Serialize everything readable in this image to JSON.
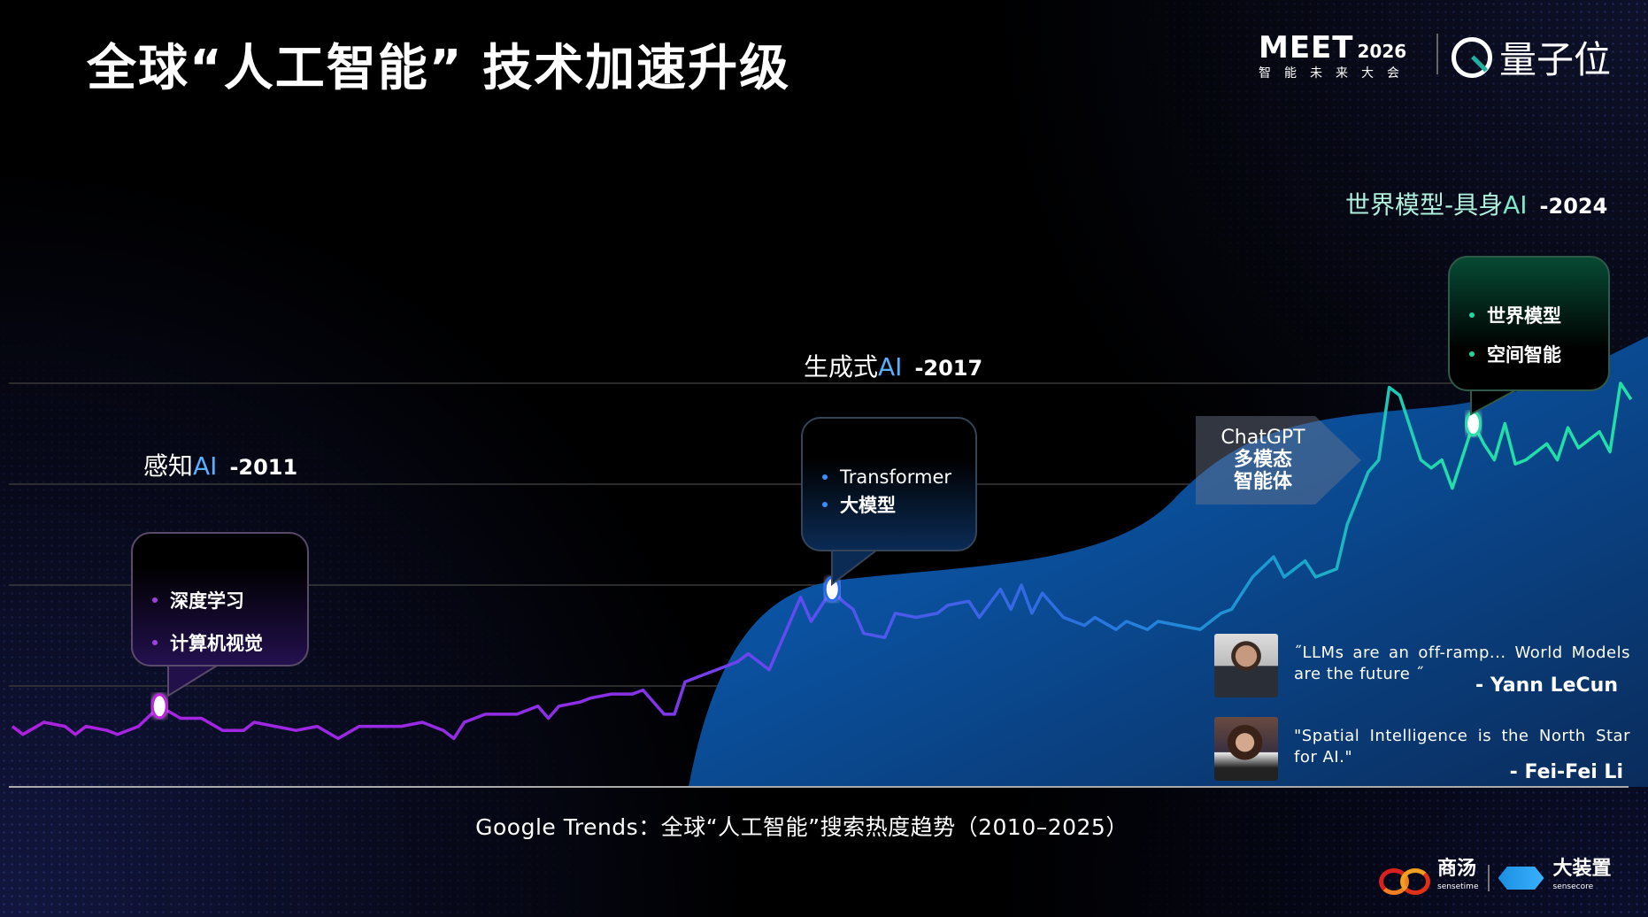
{
  "title": "全球“人工智能” 技术加速升级",
  "logos": {
    "meet_main": "MEET",
    "meet_year": "2026",
    "meet_sub": "智能未来大会",
    "qbit": "量子位",
    "sensetime_cn": "商汤",
    "sensetime_en": "sensetime",
    "sensecore_cn": "大装置",
    "sensecore_en": "sensecore"
  },
  "eras": [
    {
      "name_prefix": "感知",
      "name_ai": "AI",
      "year": "-2011",
      "bullets": [
        "深度学习",
        "计算机视觉"
      ]
    },
    {
      "name_prefix": "生成式",
      "name_ai": "AI",
      "year": "-2017",
      "bullets": [
        "Transformer",
        "大模型"
      ]
    },
    {
      "name_prefix": "世界模型-具身",
      "name_ai": "AI",
      "year": "-2024",
      "bullets": [
        "世界模型",
        "空间智能"
      ]
    }
  ],
  "chatgpt_box": {
    "line1": "ChatGPT",
    "line2": "多模态",
    "line3": "智能体"
  },
  "quotes": [
    {
      "text": "˝LLMs are an off-ramp... World Models are the future ˝",
      "author": "- Yann LeCun"
    },
    {
      "text": "\"Spatial Intelligence is the North Star for AI.\"",
      "author": "- Fei-Fei Li"
    }
  ],
  "caption": "Google Trends：全球“人工智能”搜索热度趋势（2010–2025）",
  "colors": {
    "line_start": "#b020e0",
    "line_mid": "#6a40f0",
    "line_blue": "#1aa0d0",
    "line_end": "#20e0a8",
    "area": "#0a5cb5"
  },
  "chart_data": {
    "type": "line",
    "title": "Google Trends：全球“人工智能”搜索热度趋势（2010–2025）",
    "xlabel": "",
    "ylabel": "",
    "xlim": [
      2010,
      2025.5
    ],
    "ylim": [
      0,
      100
    ],
    "grid": true,
    "highlights": [
      2011.4,
      2017.8,
      2023.9
    ],
    "x": [
      2010.0,
      2010.1,
      2010.3,
      2010.5,
      2010.6,
      2010.7,
      2010.9,
      2011.0,
      2011.2,
      2011.4,
      2011.6,
      2011.8,
      2012.0,
      2012.2,
      2012.3,
      2012.5,
      2012.7,
      2012.9,
      2013.1,
      2013.3,
      2013.7,
      2013.9,
      2014.1,
      2014.2,
      2014.3,
      2014.5,
      2014.8,
      2015.0,
      2015.1,
      2015.2,
      2015.4,
      2015.5,
      2015.7,
      2015.9,
      2016.0,
      2016.2,
      2016.3,
      2016.4,
      2016.6,
      2016.7,
      2016.9,
      2017.0,
      2017.2,
      2017.4,
      2017.5,
      2017.6,
      2017.8,
      2017.9,
      2018.0,
      2018.1,
      2018.3,
      2018.4,
      2018.6,
      2018.8,
      2018.9,
      2019.1,
      2019.2,
      2019.4,
      2019.5,
      2019.6,
      2019.7,
      2019.8,
      2020.0,
      2020.2,
      2020.3,
      2020.5,
      2020.6,
      2020.8,
      2020.9,
      2021.1,
      2021.3,
      2021.5,
      2021.6,
      2021.8,
      2022.0,
      2022.1,
      2022.3,
      2022.4,
      2022.6,
      2022.7,
      2022.9,
      2023.0,
      2023.1,
      2023.2,
      2023.4,
      2023.5,
      2023.6,
      2023.7,
      2023.9,
      2024.0,
      2024.1,
      2024.2,
      2024.3,
      2024.4,
      2024.6,
      2024.7,
      2024.8,
      2024.9,
      2025.1,
      2025.2,
      2025.3,
      2025.4
    ],
    "values": [
      15,
      13,
      16,
      15,
      13,
      15,
      14,
      13,
      15,
      20,
      17,
      17,
      14,
      14,
      16,
      15,
      14,
      15,
      12,
      15,
      15,
      16,
      14,
      12,
      16,
      18,
      18,
      20,
      17,
      20,
      21,
      22,
      23,
      23,
      24,
      18,
      18,
      26,
      28,
      29,
      31,
      33,
      29,
      41,
      47,
      41,
      49,
      46,
      44,
      38,
      37,
      43,
      42,
      43,
      45,
      46,
      42,
      49,
      44,
      50,
      43,
      48,
      42,
      40,
      42,
      39,
      41,
      39,
      41,
      40,
      39,
      43,
      44,
      52,
      57,
      52,
      56,
      52,
      54,
      65,
      78,
      81,
      99,
      97,
      81,
      79,
      81,
      74,
      90,
      85,
      81,
      90,
      80,
      81,
      85,
      81,
      89,
      84,
      88,
      83,
      100,
      96
    ]
  }
}
